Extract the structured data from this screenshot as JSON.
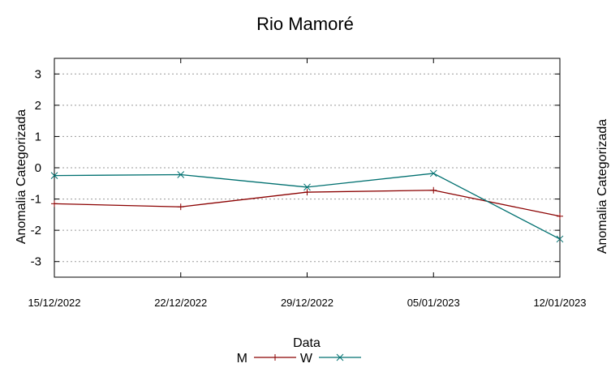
{
  "chart_data": {
    "type": "line",
    "title": "Rio Mamoré",
    "xlabel": "Data",
    "ylabel": "Anomalia Categorizada",
    "ylabel_right": "Anomalia Categorizada",
    "categories": [
      "15/12/2022",
      "22/12/2022",
      "29/12/2022",
      "05/01/2023",
      "12/01/2023"
    ],
    "ylim": [
      -3.5,
      3.5
    ],
    "yticks": [
      3,
      2,
      1,
      0,
      -1,
      -2,
      -3
    ],
    "grid": true,
    "series": [
      {
        "name": "M",
        "color": "#8b0000",
        "marker": "plus",
        "values": [
          -1.15,
          -1.25,
          -0.78,
          -0.72,
          -1.55
        ]
      },
      {
        "name": "W",
        "color": "#007070",
        "marker": "x",
        "values": [
          -0.25,
          -0.22,
          -0.62,
          -0.18,
          -2.28
        ]
      }
    ],
    "legend_position": "bottom-center"
  }
}
